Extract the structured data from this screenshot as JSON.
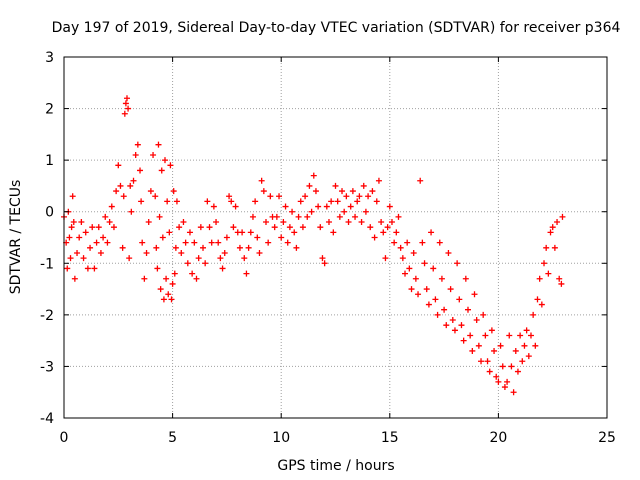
{
  "chart_data": {
    "type": "scatter",
    "title": "Day 197 of 2019, Sidereal Day-to-day VTEC variation (SDTVAR) for receiver p364",
    "xlabel": "GPS time / hours",
    "ylabel": "SDTVAR / TECUs",
    "xlim": [
      0,
      25
    ],
    "ylim": [
      -4,
      3
    ],
    "xticks": [
      "0",
      "5",
      "10",
      "15",
      "20",
      "25"
    ],
    "yticks": [
      "-4",
      "-3",
      "-2",
      "-1",
      "0",
      "1",
      "2",
      "3"
    ],
    "grid": true,
    "marker": "+",
    "series_color": "#ff0000",
    "series": [
      {
        "name": "SDTVAR",
        "points": [
          [
            0.0,
            -0.1
          ],
          [
            0.1,
            -0.6
          ],
          [
            0.15,
            -1.1
          ],
          [
            0.2,
            0.0
          ],
          [
            0.25,
            -0.5
          ],
          [
            0.3,
            -0.9
          ],
          [
            0.35,
            -0.3
          ],
          [
            0.4,
            0.3
          ],
          [
            0.45,
            -0.2
          ],
          [
            0.5,
            -1.3
          ],
          [
            0.6,
            -0.8
          ],
          [
            0.7,
            -0.5
          ],
          [
            0.8,
            -0.2
          ],
          [
            0.9,
            -0.9
          ],
          [
            1.0,
            -0.4
          ],
          [
            1.1,
            -1.1
          ],
          [
            1.2,
            -0.7
          ],
          [
            1.3,
            -0.3
          ],
          [
            1.4,
            -1.1
          ],
          [
            1.5,
            -0.6
          ],
          [
            1.6,
            -0.3
          ],
          [
            1.7,
            -0.8
          ],
          [
            1.8,
            -0.5
          ],
          [
            1.9,
            -0.1
          ],
          [
            2.0,
            -0.6
          ],
          [
            2.1,
            -0.2
          ],
          [
            2.2,
            0.1
          ],
          [
            2.3,
            -0.3
          ],
          [
            2.4,
            0.4
          ],
          [
            2.5,
            0.9
          ],
          [
            2.6,
            0.5
          ],
          [
            2.7,
            -0.7
          ],
          [
            2.75,
            0.3
          ],
          [
            2.8,
            1.9
          ],
          [
            2.85,
            2.1
          ],
          [
            2.9,
            2.2
          ],
          [
            2.95,
            2.0
          ],
          [
            3.0,
            -0.9
          ],
          [
            3.05,
            0.5
          ],
          [
            3.1,
            0.0
          ],
          [
            3.2,
            0.6
          ],
          [
            3.3,
            1.1
          ],
          [
            3.4,
            1.3
          ],
          [
            3.5,
            0.8
          ],
          [
            3.55,
            0.2
          ],
          [
            3.6,
            -0.6
          ],
          [
            3.7,
            -1.3
          ],
          [
            3.8,
            -0.8
          ],
          [
            3.9,
            -0.2
          ],
          [
            4.0,
            0.4
          ],
          [
            4.1,
            1.1
          ],
          [
            4.2,
            0.3
          ],
          [
            4.25,
            -0.7
          ],
          [
            4.3,
            -1.1
          ],
          [
            4.35,
            1.3
          ],
          [
            4.4,
            -0.1
          ],
          [
            4.45,
            -1.5
          ],
          [
            4.5,
            0.8
          ],
          [
            4.55,
            -0.5
          ],
          [
            4.6,
            -1.7
          ],
          [
            4.65,
            1.0
          ],
          [
            4.7,
            -1.3
          ],
          [
            4.75,
            0.2
          ],
          [
            4.8,
            -1.6
          ],
          [
            4.85,
            -0.4
          ],
          [
            4.9,
            0.9
          ],
          [
            4.95,
            -1.7
          ],
          [
            5.0,
            -1.4
          ],
          [
            5.05,
            0.4
          ],
          [
            5.1,
            -1.2
          ],
          [
            5.15,
            -0.7
          ],
          [
            5.2,
            0.2
          ],
          [
            5.3,
            -0.3
          ],
          [
            5.4,
            -0.8
          ],
          [
            5.5,
            -0.2
          ],
          [
            5.6,
            -0.6
          ],
          [
            5.7,
            -1.0
          ],
          [
            5.8,
            -0.4
          ],
          [
            5.9,
            -1.2
          ],
          [
            6.0,
            -0.6
          ],
          [
            6.1,
            -1.3
          ],
          [
            6.2,
            -0.9
          ],
          [
            6.3,
            -0.3
          ],
          [
            6.4,
            -0.7
          ],
          [
            6.5,
            -1.0
          ],
          [
            6.6,
            0.2
          ],
          [
            6.7,
            -0.3
          ],
          [
            6.8,
            -0.6
          ],
          [
            6.9,
            0.1
          ],
          [
            7.0,
            -0.2
          ],
          [
            7.1,
            -0.6
          ],
          [
            7.2,
            -0.9
          ],
          [
            7.3,
            -1.1
          ],
          [
            7.4,
            -0.8
          ],
          [
            7.5,
            -0.5
          ],
          [
            7.6,
            0.3
          ],
          [
            7.7,
            0.2
          ],
          [
            7.8,
            -0.3
          ],
          [
            7.9,
            0.1
          ],
          [
            8.0,
            -0.4
          ],
          [
            8.1,
            -0.7
          ],
          [
            8.2,
            -0.4
          ],
          [
            8.3,
            -0.9
          ],
          [
            8.4,
            -1.2
          ],
          [
            8.5,
            -0.7
          ],
          [
            8.6,
            -0.4
          ],
          [
            8.7,
            -0.1
          ],
          [
            8.8,
            0.2
          ],
          [
            8.9,
            -0.5
          ],
          [
            9.0,
            -0.8
          ],
          [
            9.1,
            0.6
          ],
          [
            9.2,
            0.4
          ],
          [
            9.3,
            -0.2
          ],
          [
            9.4,
            -0.6
          ],
          [
            9.5,
            0.3
          ],
          [
            9.6,
            -0.1
          ],
          [
            9.7,
            -0.3
          ],
          [
            9.8,
            -0.1
          ],
          [
            9.9,
            0.3
          ],
          [
            10.0,
            -0.5
          ],
          [
            10.1,
            -0.2
          ],
          [
            10.2,
            0.1
          ],
          [
            10.3,
            -0.6
          ],
          [
            10.4,
            -0.3
          ],
          [
            10.5,
            0.0
          ],
          [
            10.6,
            -0.4
          ],
          [
            10.7,
            -0.7
          ],
          [
            10.8,
            -0.1
          ],
          [
            10.9,
            0.2
          ],
          [
            11.0,
            -0.3
          ],
          [
            11.1,
            0.3
          ],
          [
            11.2,
            -0.1
          ],
          [
            11.3,
            0.5
          ],
          [
            11.4,
            0.0
          ],
          [
            11.5,
            0.7
          ],
          [
            11.6,
            0.4
          ],
          [
            11.7,
            0.1
          ],
          [
            11.8,
            -0.3
          ],
          [
            11.9,
            -0.9
          ],
          [
            12.0,
            -1.0
          ],
          [
            12.1,
            0.1
          ],
          [
            12.2,
            -0.2
          ],
          [
            12.3,
            0.2
          ],
          [
            12.4,
            -0.4
          ],
          [
            12.5,
            0.5
          ],
          [
            12.6,
            0.2
          ],
          [
            12.7,
            -0.1
          ],
          [
            12.8,
            0.4
          ],
          [
            12.9,
            0.0
          ],
          [
            13.0,
            0.3
          ],
          [
            13.1,
            -0.2
          ],
          [
            13.2,
            0.1
          ],
          [
            13.3,
            0.4
          ],
          [
            13.4,
            -0.1
          ],
          [
            13.5,
            0.2
          ],
          [
            13.6,
            0.3
          ],
          [
            13.7,
            -0.2
          ],
          [
            13.8,
            0.5
          ],
          [
            13.9,
            0.0
          ],
          [
            14.0,
            0.3
          ],
          [
            14.1,
            -0.3
          ],
          [
            14.2,
            0.4
          ],
          [
            14.3,
            -0.5
          ],
          [
            14.4,
            0.2
          ],
          [
            14.5,
            0.6
          ],
          [
            14.6,
            -0.2
          ],
          [
            14.7,
            -0.4
          ],
          [
            14.8,
            -0.9
          ],
          [
            14.9,
            -0.3
          ],
          [
            15.0,
            0.1
          ],
          [
            15.1,
            -0.2
          ],
          [
            15.2,
            -0.6
          ],
          [
            15.3,
            -0.4
          ],
          [
            15.4,
            -0.1
          ],
          [
            15.5,
            -0.7
          ],
          [
            15.6,
            -0.9
          ],
          [
            15.7,
            -1.2
          ],
          [
            15.8,
            -0.6
          ],
          [
            15.9,
            -1.1
          ],
          [
            16.0,
            -1.5
          ],
          [
            16.1,
            -0.8
          ],
          [
            16.2,
            -1.3
          ],
          [
            16.3,
            -1.6
          ],
          [
            16.4,
            0.6
          ],
          [
            16.5,
            -0.6
          ],
          [
            16.6,
            -1.0
          ],
          [
            16.7,
            -1.5
          ],
          [
            16.8,
            -1.8
          ],
          [
            16.9,
            -0.4
          ],
          [
            17.0,
            -1.1
          ],
          [
            17.1,
            -1.7
          ],
          [
            17.2,
            -2.0
          ],
          [
            17.3,
            -0.6
          ],
          [
            17.4,
            -1.3
          ],
          [
            17.5,
            -1.9
          ],
          [
            17.6,
            -2.2
          ],
          [
            17.7,
            -0.8
          ],
          [
            17.8,
            -1.5
          ],
          [
            17.9,
            -2.1
          ],
          [
            18.0,
            -2.3
          ],
          [
            18.1,
            -1.0
          ],
          [
            18.2,
            -1.7
          ],
          [
            18.3,
            -2.2
          ],
          [
            18.4,
            -2.5
          ],
          [
            18.5,
            -1.3
          ],
          [
            18.6,
            -1.9
          ],
          [
            18.7,
            -2.4
          ],
          [
            18.8,
            -2.7
          ],
          [
            18.9,
            -1.6
          ],
          [
            19.0,
            -2.1
          ],
          [
            19.1,
            -2.6
          ],
          [
            19.2,
            -2.9
          ],
          [
            19.3,
            -2.0
          ],
          [
            19.4,
            -2.4
          ],
          [
            19.5,
            -2.9
          ],
          [
            19.6,
            -3.1
          ],
          [
            19.7,
            -2.3
          ],
          [
            19.8,
            -2.7
          ],
          [
            19.9,
            -3.2
          ],
          [
            20.0,
            -3.3
          ],
          [
            20.1,
            -2.6
          ],
          [
            20.2,
            -3.0
          ],
          [
            20.3,
            -3.4
          ],
          [
            20.4,
            -3.3
          ],
          [
            20.5,
            -2.4
          ],
          [
            20.6,
            -3.0
          ],
          [
            20.7,
            -3.5
          ],
          [
            20.8,
            -2.7
          ],
          [
            20.9,
            -3.1
          ],
          [
            21.0,
            -2.4
          ],
          [
            21.1,
            -2.9
          ],
          [
            21.2,
            -2.6
          ],
          [
            21.3,
            -2.3
          ],
          [
            21.4,
            -2.8
          ],
          [
            21.5,
            -2.4
          ],
          [
            21.6,
            -2.0
          ],
          [
            21.7,
            -2.6
          ],
          [
            21.8,
            -1.7
          ],
          [
            21.9,
            -1.3
          ],
          [
            22.0,
            -1.8
          ],
          [
            22.1,
            -1.0
          ],
          [
            22.2,
            -0.7
          ],
          [
            22.3,
            -1.2
          ],
          [
            22.4,
            -0.4
          ],
          [
            22.5,
            -0.3
          ],
          [
            22.6,
            -0.7
          ],
          [
            22.7,
            -0.2
          ],
          [
            22.8,
            -1.3
          ],
          [
            22.9,
            -1.4
          ],
          [
            22.95,
            -0.1
          ]
        ]
      }
    ]
  }
}
